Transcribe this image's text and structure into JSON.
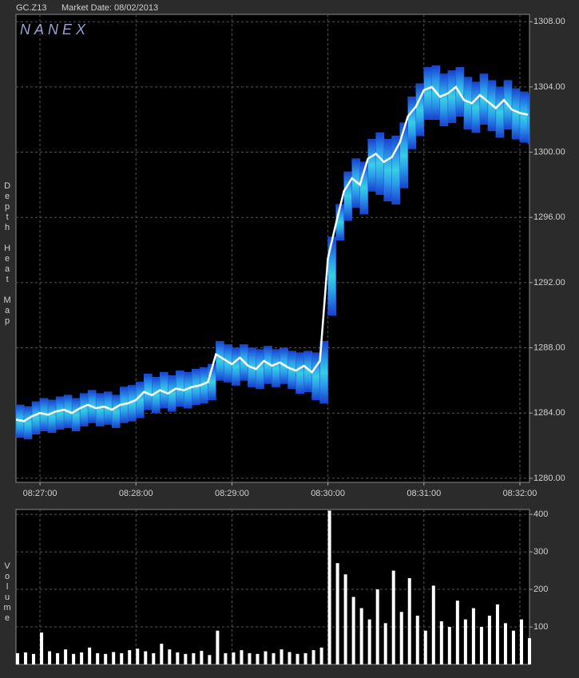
{
  "chart_data": [
    {
      "type": "heatmap-line",
      "title": "GC.Z13",
      "subtitle": "Market Date: 08/02/2013",
      "watermark": "NANEX",
      "ylabel": "Depth Heat Map",
      "x": [
        "08:26:45",
        "08:26:50",
        "08:26:55",
        "08:27:00",
        "08:27:05",
        "08:27:10",
        "08:27:15",
        "08:27:20",
        "08:27:25",
        "08:27:30",
        "08:27:35",
        "08:27:40",
        "08:27:45",
        "08:27:50",
        "08:27:55",
        "08:28:00",
        "08:28:05",
        "08:28:10",
        "08:28:15",
        "08:28:20",
        "08:28:25",
        "08:28:30",
        "08:28:35",
        "08:28:40",
        "08:28:45",
        "08:28:50",
        "08:28:55",
        "08:29:00",
        "08:29:05",
        "08:29:10",
        "08:29:15",
        "08:29:20",
        "08:29:25",
        "08:29:30",
        "08:29:35",
        "08:29:40",
        "08:29:45",
        "08:29:50",
        "08:29:55",
        "08:30:00",
        "08:30:05",
        "08:30:10",
        "08:30:15",
        "08:30:20",
        "08:30:25",
        "08:30:30",
        "08:30:35",
        "08:30:40",
        "08:30:45",
        "08:30:50",
        "08:30:55",
        "08:31:00",
        "08:31:05",
        "08:31:10",
        "08:31:15",
        "08:31:20",
        "08:31:25",
        "08:31:30",
        "08:31:35",
        "08:31:40",
        "08:31:45",
        "08:31:50",
        "08:31:55",
        "08:32:00",
        "08:32:05"
      ],
      "values": [
        1283.6,
        1283.5,
        1283.8,
        1284.0,
        1283.9,
        1284.1,
        1284.2,
        1284.0,
        1284.3,
        1284.5,
        1284.3,
        1284.4,
        1284.2,
        1284.5,
        1284.6,
        1284.8,
        1285.3,
        1285.1,
        1285.4,
        1285.2,
        1285.5,
        1285.4,
        1285.6,
        1285.7,
        1285.9,
        1287.6,
        1287.3,
        1287.0,
        1287.4,
        1286.9,
        1286.7,
        1287.2,
        1286.9,
        1287.1,
        1286.8,
        1286.6,
        1286.9,
        1286.5,
        1287.2,
        1293.5,
        1295.6,
        1297.6,
        1298.4,
        1298.0,
        1299.6,
        1299.9,
        1299.4,
        1299.7,
        1300.6,
        1302.2,
        1302.8,
        1303.8,
        1304.0,
        1303.4,
        1303.6,
        1304.0,
        1303.2,
        1303.0,
        1303.5,
        1303.1,
        1302.7,
        1303.2,
        1302.6,
        1302.4,
        1302.3
      ],
      "band_low": [
        1282.5,
        1282.4,
        1282.7,
        1282.9,
        1282.8,
        1283.0,
        1283.1,
        1282.9,
        1283.2,
        1283.4,
        1283.2,
        1283.3,
        1283.1,
        1283.4,
        1283.5,
        1283.7,
        1284.2,
        1284.0,
        1284.3,
        1284.1,
        1284.4,
        1284.3,
        1284.5,
        1284.6,
        1284.8,
        1286.0,
        1285.9,
        1285.7,
        1286.0,
        1285.6,
        1285.5,
        1285.8,
        1285.6,
        1285.8,
        1285.5,
        1285.2,
        1285.3,
        1284.8,
        1284.6,
        1290.0,
        1294.6,
        1295.8,
        1296.6,
        1296.2,
        1297.6,
        1297.4,
        1297.0,
        1296.8,
        1297.8,
        1300.2,
        1301.0,
        1302.0,
        1302.0,
        1301.6,
        1301.8,
        1302.2,
        1301.4,
        1301.2,
        1301.7,
        1301.3,
        1300.9,
        1301.4,
        1300.8,
        1300.6,
        1300.5
      ],
      "band_high": [
        1284.5,
        1284.4,
        1284.7,
        1284.9,
        1284.8,
        1285.0,
        1285.1,
        1284.9,
        1285.2,
        1285.4,
        1285.2,
        1285.3,
        1285.1,
        1285.6,
        1285.7,
        1285.9,
        1286.4,
        1286.2,
        1286.5,
        1286.3,
        1286.6,
        1286.5,
        1286.7,
        1286.8,
        1287.0,
        1288.4,
        1288.2,
        1288.0,
        1288.2,
        1288.0,
        1287.9,
        1288.1,
        1287.9,
        1288.0,
        1287.8,
        1287.7,
        1287.8,
        1287.7,
        1288.4,
        1294.8,
        1296.8,
        1298.8,
        1299.6,
        1299.4,
        1300.8,
        1301.2,
        1300.8,
        1301.0,
        1301.8,
        1303.4,
        1304.2,
        1305.2,
        1305.3,
        1304.8,
        1305.0,
        1305.2,
        1304.6,
        1304.3,
        1304.8,
        1304.4,
        1304.0,
        1304.4,
        1303.9,
        1303.7,
        1303.6
      ],
      "color": "#ffffff",
      "band_color": "#1f5fe0",
      "xlim": [
        "08:26:45",
        "08:32:06"
      ],
      "xticks": [
        "08:27:00",
        "08:28:00",
        "08:29:00",
        "08:30:00",
        "08:31:00",
        "08:32:00"
      ],
      "ylim": [
        1279.75,
        1308.45
      ],
      "yticks": [
        {
          "value": 1280,
          "label": "1280.00"
        },
        {
          "value": 1284,
          "label": "1284.00"
        },
        {
          "value": 1288,
          "label": "1288.00"
        },
        {
          "value": 1292,
          "label": "1292.00"
        },
        {
          "value": 1296,
          "label": "1296.00"
        },
        {
          "value": 1300,
          "label": "1300.00"
        },
        {
          "value": 1304,
          "label": "1304.00"
        },
        {
          "value": 1308,
          "label": "1308.00"
        }
      ],
      "grid": true
    },
    {
      "type": "bar",
      "ylabel": "Volume",
      "x": [
        "08:26:45",
        "08:26:50",
        "08:26:55",
        "08:27:00",
        "08:27:05",
        "08:27:10",
        "08:27:15",
        "08:27:20",
        "08:27:25",
        "08:27:30",
        "08:27:35",
        "08:27:40",
        "08:27:45",
        "08:27:50",
        "08:27:55",
        "08:28:00",
        "08:28:05",
        "08:28:10",
        "08:28:15",
        "08:28:20",
        "08:28:25",
        "08:28:30",
        "08:28:35",
        "08:28:40",
        "08:28:45",
        "08:28:50",
        "08:28:55",
        "08:29:00",
        "08:29:05",
        "08:29:10",
        "08:29:15",
        "08:29:20",
        "08:29:25",
        "08:29:30",
        "08:29:35",
        "08:29:40",
        "08:29:45",
        "08:29:50",
        "08:29:55",
        "08:30:00",
        "08:30:05",
        "08:30:10",
        "08:30:15",
        "08:30:20",
        "08:30:25",
        "08:30:30",
        "08:30:35",
        "08:30:40",
        "08:30:45",
        "08:30:50",
        "08:30:55",
        "08:31:00",
        "08:31:05",
        "08:31:10",
        "08:31:15",
        "08:31:20",
        "08:31:25",
        "08:31:30",
        "08:31:35",
        "08:31:40",
        "08:31:45",
        "08:31:50",
        "08:31:55",
        "08:32:00",
        "08:32:05"
      ],
      "values": [
        30,
        32,
        28,
        85,
        35,
        30,
        40,
        28,
        32,
        45,
        30,
        28,
        33,
        30,
        38,
        42,
        35,
        30,
        55,
        40,
        32,
        28,
        30,
        36,
        25,
        90,
        30,
        32,
        38,
        30,
        28,
        35,
        30,
        40,
        33,
        28,
        30,
        38,
        45,
        410,
        270,
        240,
        180,
        150,
        120,
        200,
        110,
        250,
        140,
        230,
        130,
        90,
        210,
        115,
        100,
        170,
        120,
        150,
        100,
        130,
        160,
        110,
        90,
        120,
        70
      ],
      "color": "#ffffff",
      "xlim": [
        "08:26:45",
        "08:32:06"
      ],
      "ylim": [
        0,
        413
      ],
      "yticks": [
        100,
        200,
        300,
        400
      ],
      "grid": true
    }
  ]
}
